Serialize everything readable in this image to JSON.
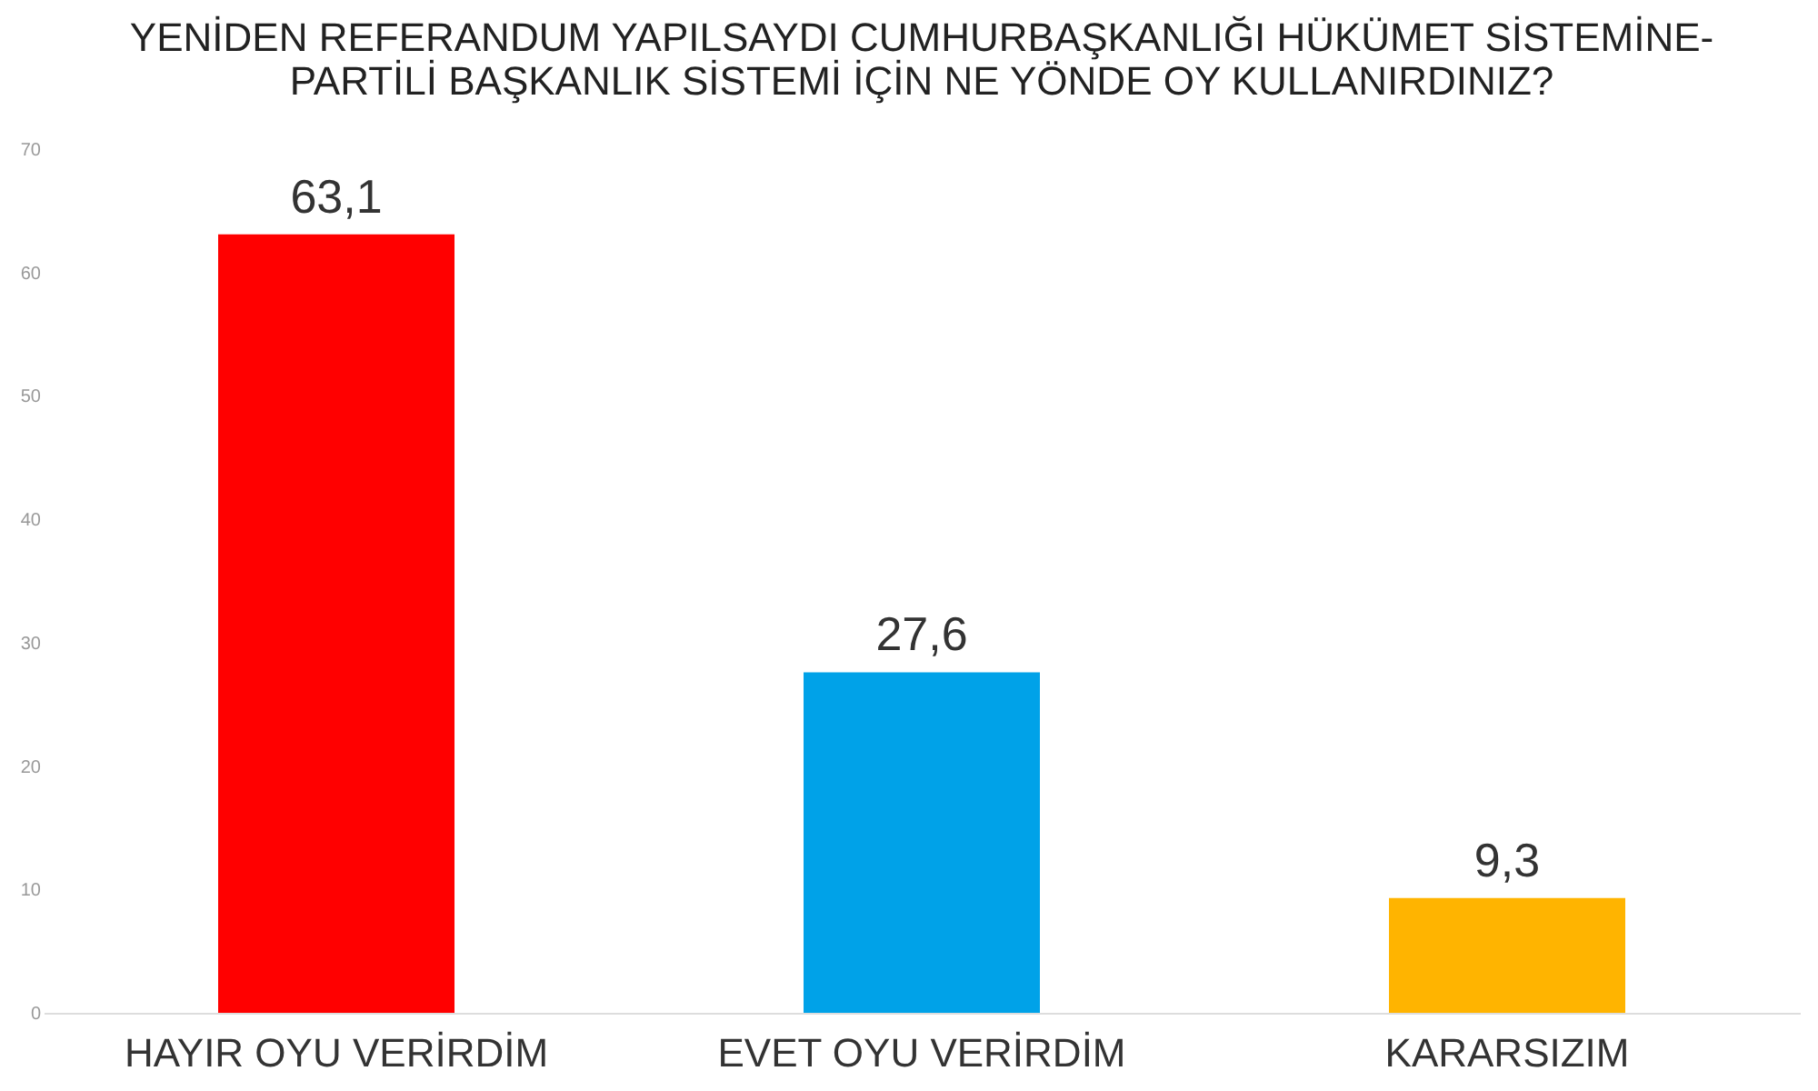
{
  "chart_data": {
    "type": "bar",
    "title": [
      "YENİDEN REFERANDUM YAPILSAYDI CUMHURBAŞKANLIĞI HÜKÜMET SİSTEMİNE-",
      "PARTİLİ BAŞKANLIK SİSTEMİ İÇİN NE YÖNDE OY KULLANIRDINIZ?"
    ],
    "categories": [
      "HAYIR OYU VERİRDİM",
      "EVET OYU VERİRDİM",
      "KARARSIZIM"
    ],
    "values": [
      63.1,
      27.6,
      9.3
    ],
    "colors": [
      "#ff0000",
      "#00a2e8",
      "#ffb400"
    ],
    "value_labels": [
      "63,1",
      "27,6",
      "9,3"
    ],
    "ylim": [
      0,
      70
    ],
    "yticks": [
      0,
      10,
      20,
      30,
      40,
      50,
      60,
      70
    ],
    "grid": false
  }
}
